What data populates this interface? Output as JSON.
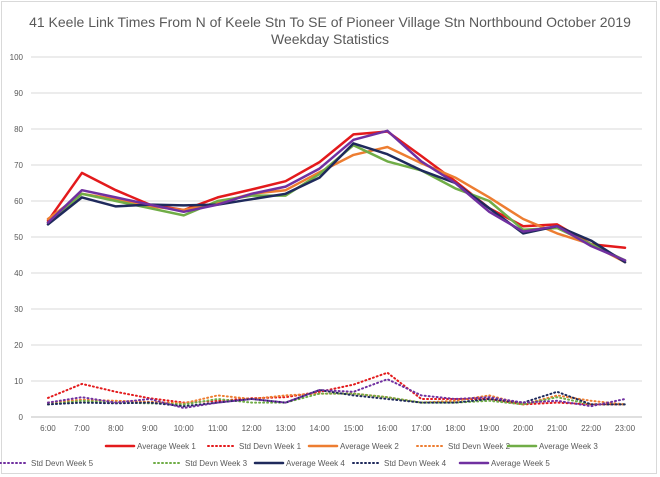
{
  "chart_data": {
    "type": "line",
    "title": "41 Keele Link Times From N of Keele Stn To SE of Pioneer Village Stn Northbound October 2019",
    "subtitle": "Weekday Statistics",
    "xlabel": "",
    "ylabel": "",
    "ylim": [
      0,
      100
    ],
    "yticks": [
      "0",
      "10",
      "20",
      "30",
      "40",
      "50",
      "60",
      "70",
      "80",
      "90",
      "100"
    ],
    "grid": "horizontal",
    "legend_position": "bottom",
    "categories": [
      "6:00",
      "7:00",
      "8:00",
      "9:00",
      "10:00",
      "11:00",
      "12:00",
      "13:00",
      "14:00",
      "15:00",
      "16:00",
      "17:00",
      "18:00",
      "19:00",
      "20:00",
      "21:00",
      "22:00",
      "23:00"
    ],
    "series": [
      {
        "name": "Average Week 1",
        "color": "#e31a1c",
        "style": "solid",
        "values": [
          54.5,
          67.8,
          63.0,
          59.0,
          57.5,
          61.0,
          63.2,
          65.5,
          70.8,
          78.5,
          79.3,
          72.5,
          65.5,
          58.0,
          53.0,
          53.5,
          48.0,
          47.0
        ]
      },
      {
        "name": "Std Devn Week 1",
        "color": "#e31a1c",
        "style": "dotted",
        "values": [
          5.3,
          9.2,
          7.0,
          5.2,
          4.0,
          4.5,
          5.2,
          5.5,
          7.0,
          9.0,
          12.3,
          5.0,
          5.0,
          5.0,
          3.5,
          4.0,
          3.5,
          3.5
        ]
      },
      {
        "name": "Average Week 2",
        "color": "#ed7d31",
        "style": "solid",
        "values": [
          55.0,
          62.0,
          60.5,
          58.5,
          57.5,
          59.5,
          62.0,
          63.0,
          68.0,
          72.8,
          75.0,
          70.5,
          66.5,
          61.0,
          55.0,
          51.0,
          48.0,
          43.0
        ]
      },
      {
        "name": "Std Devn Week 2",
        "color": "#ed7d31",
        "style": "dotted",
        "values": [
          4.0,
          4.8,
          4.5,
          4.2,
          3.8,
          6.0,
          5.0,
          6.0,
          6.5,
          6.5,
          5.5,
          4.0,
          4.5,
          6.0,
          3.5,
          6.0,
          4.5,
          3.5
        ]
      },
      {
        "name": "Average Week 3",
        "color": "#70ad47",
        "style": "solid",
        "values": [
          54.0,
          62.0,
          60.0,
          58.0,
          56.0,
          60.0,
          61.5,
          61.5,
          67.5,
          75.5,
          71.0,
          68.5,
          63.5,
          60.0,
          52.0,
          52.5,
          48.0,
          43.5
        ]
      },
      {
        "name": "Std Devn Week 3",
        "color": "#70ad47",
        "style": "dotted",
        "values": [
          3.5,
          4.5,
          4.0,
          3.8,
          3.5,
          5.0,
          4.0,
          4.0,
          6.5,
          6.5,
          5.5,
          4.0,
          4.0,
          4.5,
          3.5,
          5.5,
          3.5,
          3.5
        ]
      },
      {
        "name": "Average Week 4",
        "color": "#1f2a5c",
        "style": "solid",
        "values": [
          53.5,
          61.0,
          58.5,
          59.0,
          58.8,
          59.0,
          60.5,
          62.0,
          66.5,
          76.0,
          73.0,
          68.5,
          65.0,
          58.0,
          51.0,
          53.0,
          49.0,
          43.0
        ]
      },
      {
        "name": "Std Devn Week 4",
        "color": "#1f2a5c",
        "style": "dotted",
        "values": [
          3.5,
          4.0,
          3.8,
          4.0,
          3.0,
          4.0,
          5.0,
          4.0,
          7.5,
          6.0,
          5.0,
          4.0,
          4.0,
          5.0,
          4.0,
          7.0,
          3.5,
          3.5
        ]
      },
      {
        "name": "Average Week 5",
        "color": "#7030a0",
        "style": "solid",
        "values": [
          54.0,
          63.0,
          61.0,
          59.0,
          57.0,
          59.0,
          62.0,
          64.0,
          69.0,
          77.0,
          79.5,
          71.0,
          65.0,
          57.0,
          51.5,
          53.0,
          47.5,
          43.5
        ]
      },
      {
        "name": "Std Devn Week 5",
        "color": "#7030a0",
        "style": "dotted",
        "values": [
          4.0,
          5.5,
          4.0,
          5.0,
          2.5,
          4.0,
          5.0,
          4.0,
          7.5,
          7.0,
          10.5,
          6.0,
          5.0,
          5.5,
          4.0,
          4.5,
          3.0,
          5.0
        ]
      }
    ]
  }
}
